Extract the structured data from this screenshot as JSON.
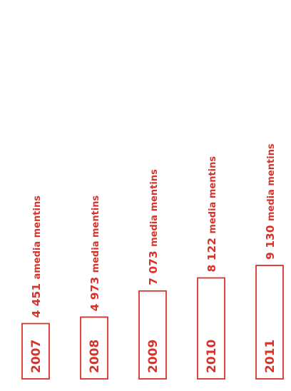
{
  "chart_data": {
    "type": "bar",
    "categories": [
      "2007",
      "2008",
      "2009",
      "2010",
      "2011"
    ],
    "values": [
      4451,
      4973,
      7073,
      8122,
      9130
    ],
    "value_labels": [
      "4 451",
      "4 973",
      "7 073",
      "8 122",
      "9 130"
    ],
    "label_suffixes": [
      "amedia mentins",
      "media mentins",
      "media mentins",
      "media mentins",
      "media mentins"
    ],
    "title": "",
    "xlabel": "",
    "ylabel": "",
    "grid": false,
    "legend": "none",
    "colors": {
      "accent": "#d8322a",
      "background": "#ffffff"
    }
  }
}
